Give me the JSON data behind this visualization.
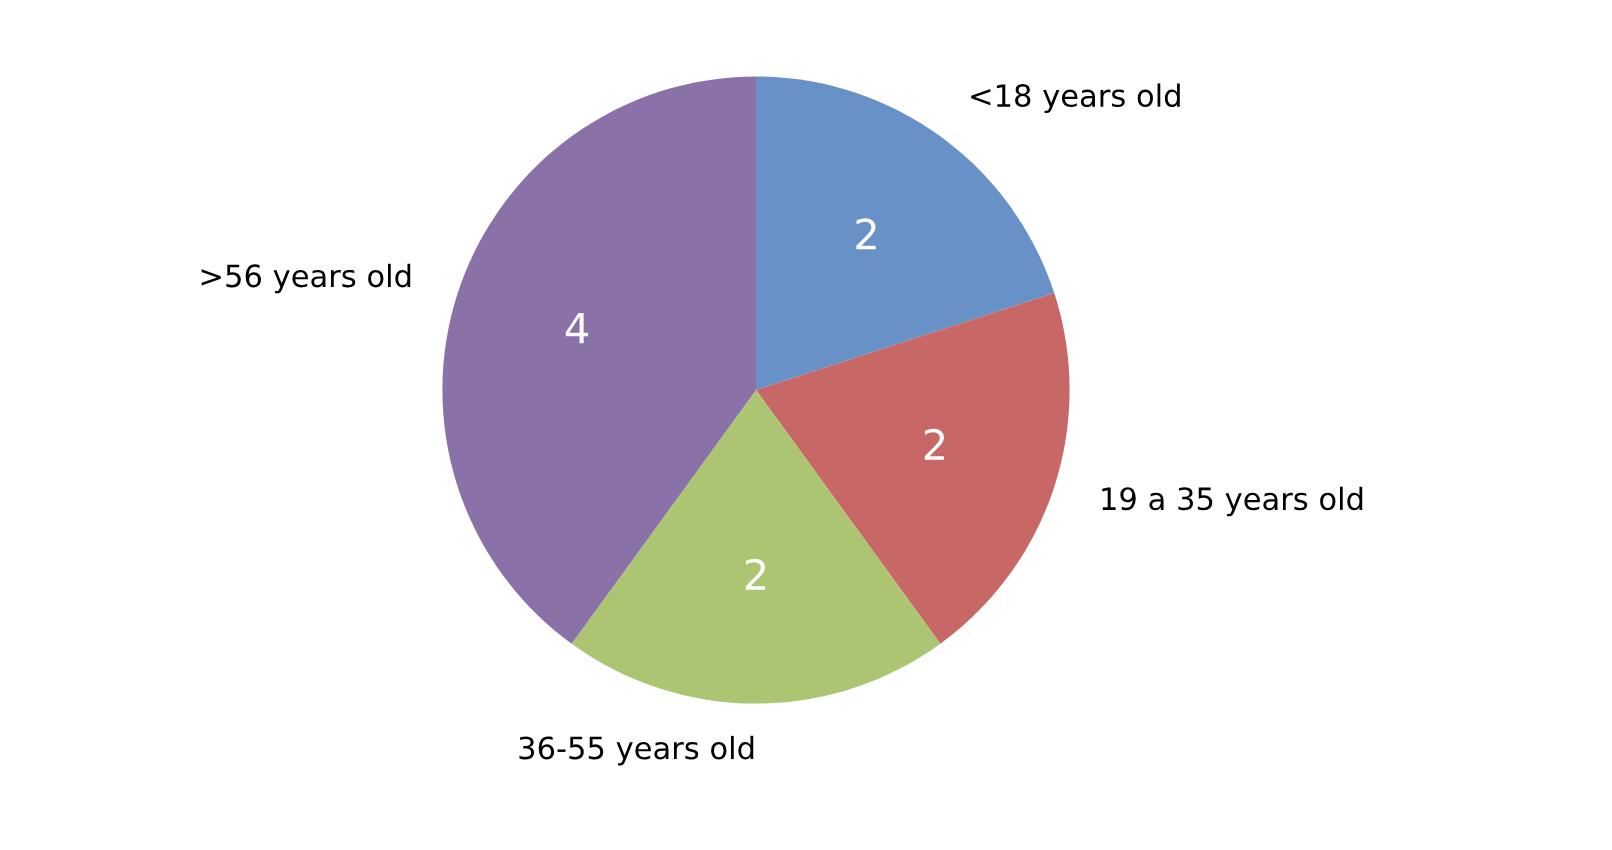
{
  "chart_data": {
    "type": "pie",
    "categories": [
      "<18 years old",
      "19 a 35 years old",
      "36-55 years old",
      ">56 years old"
    ],
    "values": [
      2,
      2,
      2,
      4
    ],
    "colors": [
      "#6791c7",
      "#c76766",
      "#abc573",
      "#8a71a8"
    ],
    "data_labels": true
  }
}
